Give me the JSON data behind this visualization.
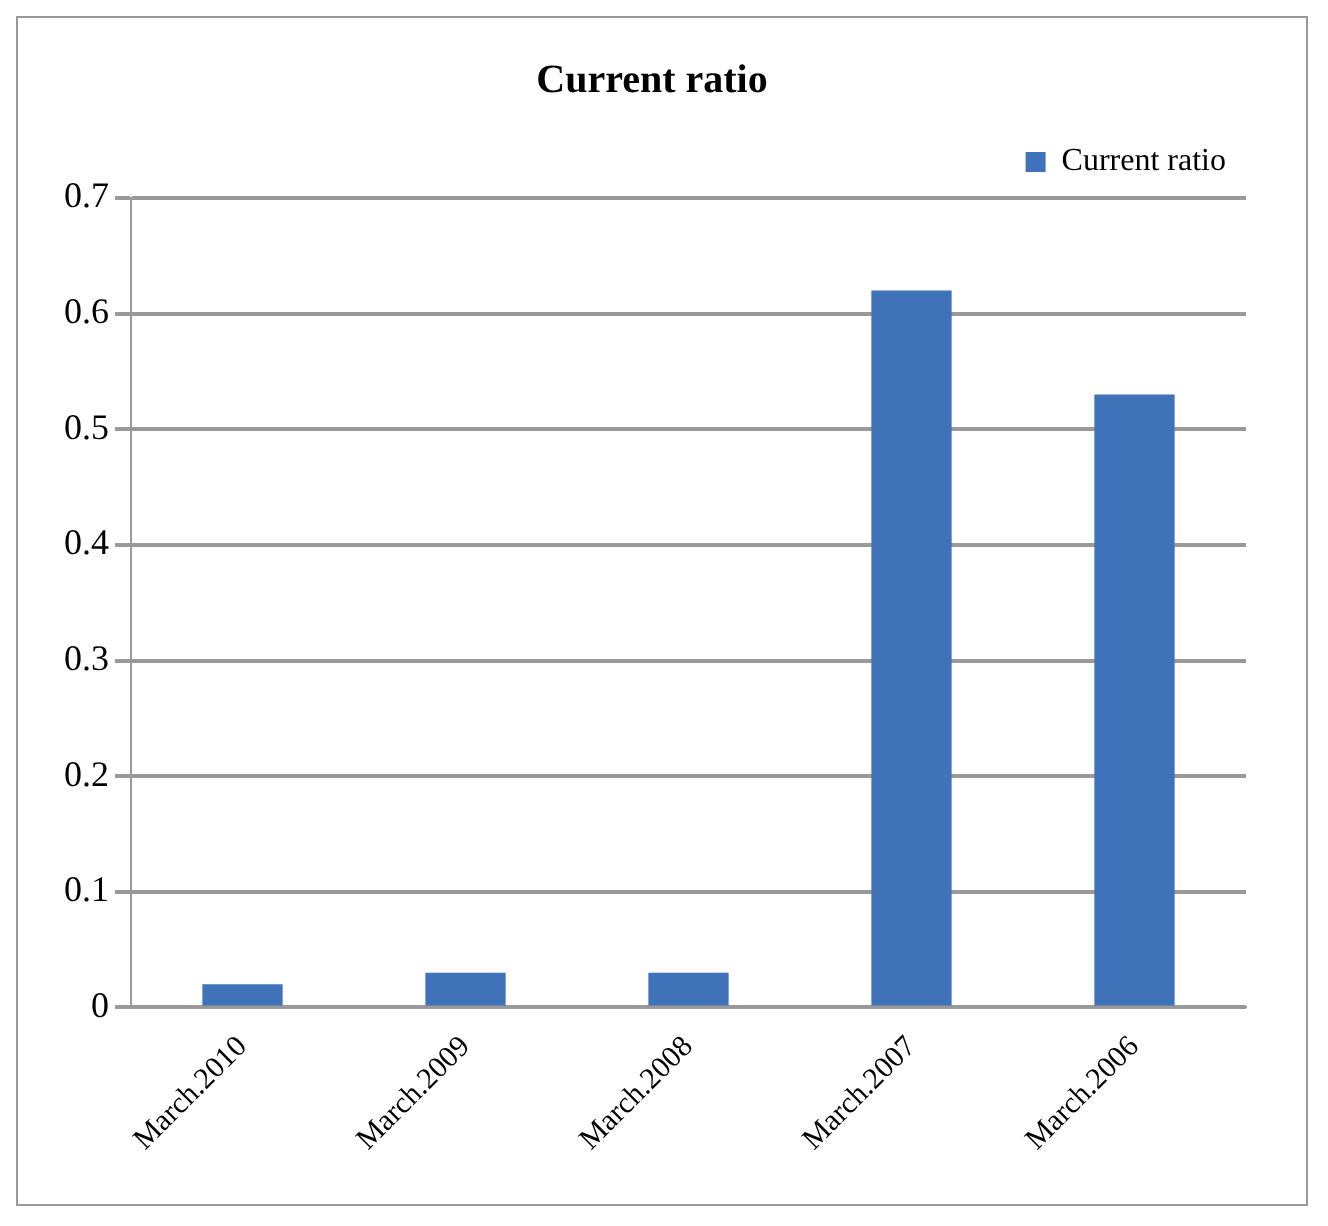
{
  "chart_data": {
    "type": "bar",
    "title": "Current ratio",
    "categories": [
      "March.2010",
      "March.2009",
      "March.2008",
      "March.2007",
      "March.2006"
    ],
    "series": [
      {
        "name": "Current ratio",
        "color": "#3f72b8",
        "values": [
          0.02,
          0.03,
          0.03,
          0.62,
          0.53
        ]
      }
    ],
    "ylim": [
      0,
      0.7
    ],
    "yticks": [
      0,
      0.1,
      0.2,
      0.3,
      0.4,
      0.5,
      0.6,
      0.7
    ],
    "grid": "y",
    "legend": "top right"
  }
}
